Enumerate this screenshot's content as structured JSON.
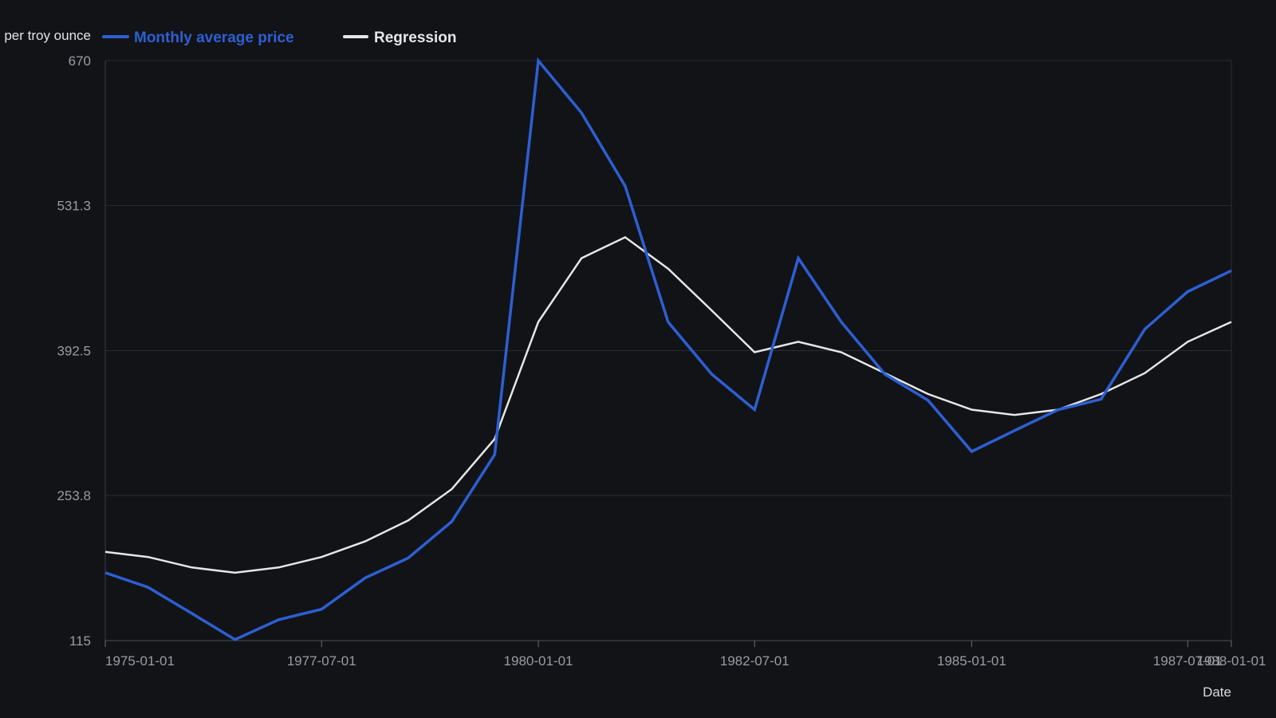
{
  "chart_data": {
    "type": "line",
    "ylabel": "per troy ounce",
    "xlabel": "Date",
    "ylim": [
      115,
      670
    ],
    "yticks": [
      "115",
      "253.8",
      "392.5",
      "531.3",
      "670"
    ],
    "xticks": [
      "1975-01-01",
      "1977-07-01",
      "1980-01-01",
      "1982-07-01",
      "1985-01-01",
      "1987-07-01",
      "1988-01-01"
    ],
    "grid": true,
    "legend_position": "top-left",
    "x": [
      "1975-01-01",
      "1975-07-01",
      "1976-01-01",
      "1976-07-01",
      "1977-01-01",
      "1977-07-01",
      "1978-01-01",
      "1978-07-01",
      "1979-01-01",
      "1979-07-01",
      "1980-01-01",
      "1980-07-01",
      "1981-01-01",
      "1981-07-01",
      "1982-01-01",
      "1982-07-01",
      "1983-01-01",
      "1983-07-01",
      "1984-01-01",
      "1984-07-01",
      "1985-01-01",
      "1985-07-01",
      "1986-01-01",
      "1986-07-01",
      "1987-01-01",
      "1987-07-01",
      "1988-01-01"
    ],
    "series": [
      {
        "name": "Monthly average price",
        "color": "#2d5fd3",
        "values": [
          180,
          166,
          141,
          116,
          135,
          145,
          175,
          194,
          229,
          293,
          670,
          620,
          550,
          420,
          370,
          336,
          481,
          420,
          370,
          345,
          296,
          316,
          336,
          346,
          413,
          449,
          469
        ]
      },
      {
        "name": "Regression",
        "color": "#e6e6e6",
        "values": [
          200,
          195,
          185,
          180,
          185,
          195,
          210,
          230,
          260,
          308,
          420,
          481,
          501,
          471,
          431,
          391,
          401,
          391,
          371,
          351,
          336,
          331,
          336,
          351,
          371,
          401,
          420
        ]
      }
    ]
  }
}
